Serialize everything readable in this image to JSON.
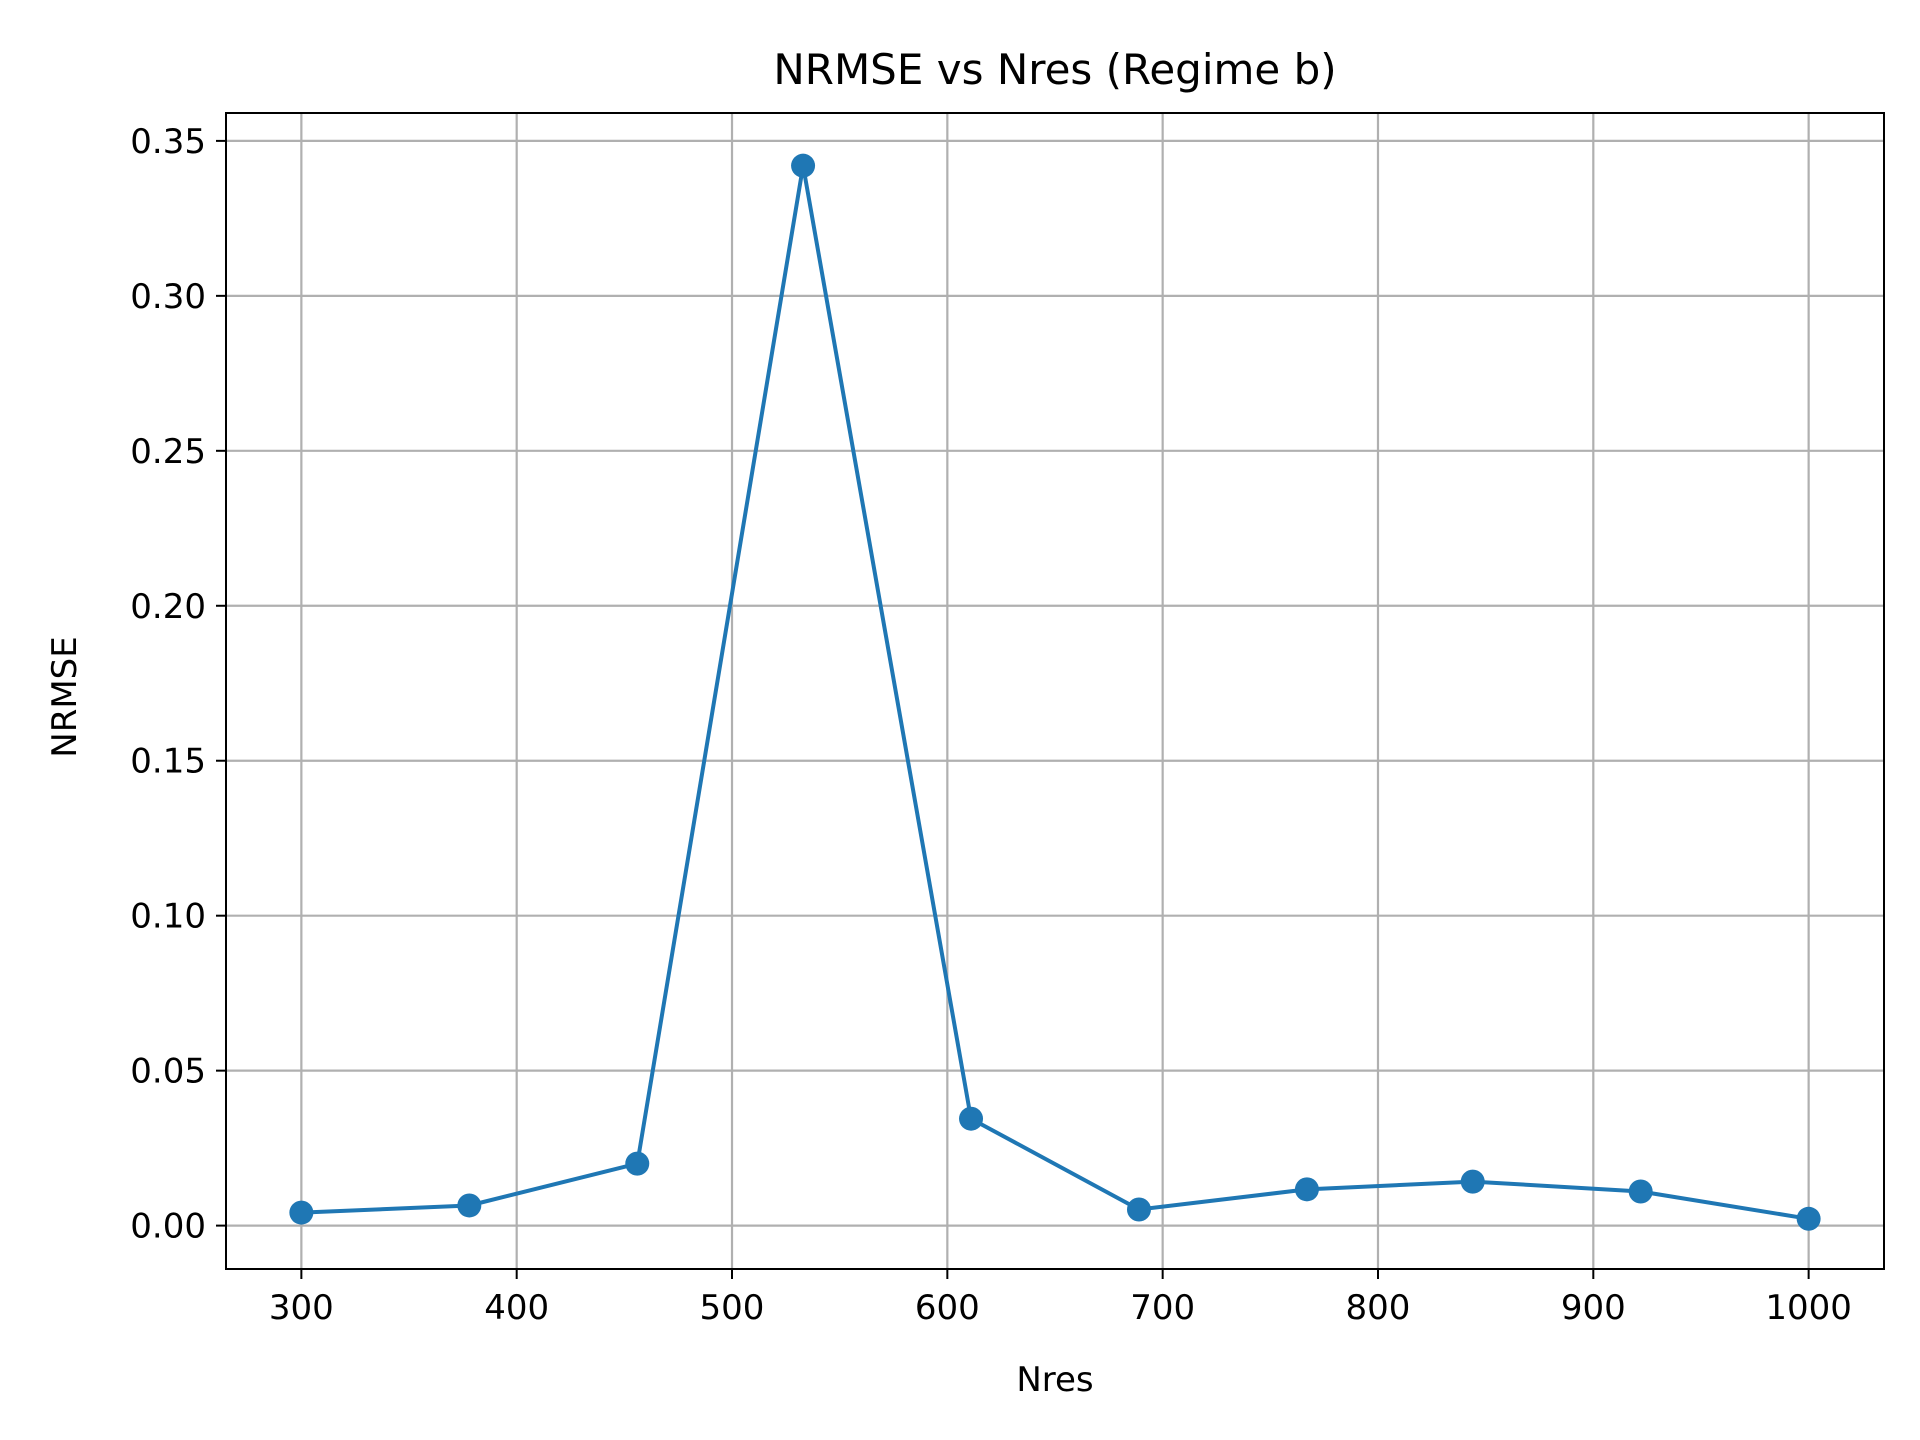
{
  "chart_data": {
    "type": "line",
    "title": "NRMSE vs Nres (Regime b)",
    "xlabel": "Nres",
    "ylabel": "NRMSE",
    "xlim": [
      265,
      1035
    ],
    "ylim": [
      -0.014,
      0.359
    ],
    "x_ticks": [
      300,
      400,
      500,
      600,
      700,
      800,
      900,
      1000
    ],
    "x_tick_labels": [
      "300",
      "400",
      "500",
      "600",
      "700",
      "800",
      "900",
      "1000"
    ],
    "y_ticks": [
      0.0,
      0.05,
      0.1,
      0.15,
      0.2,
      0.25,
      0.3,
      0.35
    ],
    "y_tick_labels": [
      "0.00",
      "0.05",
      "0.10",
      "0.15",
      "0.20",
      "0.25",
      "0.30",
      "0.35"
    ],
    "grid": true,
    "series": [
      {
        "color": "#1f77b4",
        "marker": "circle",
        "x": [
          300,
          378,
          456,
          533,
          611,
          689,
          767,
          844,
          922,
          1000
        ],
        "y": [
          0.0042,
          0.0065,
          0.02,
          0.342,
          0.0345,
          0.0052,
          0.0117,
          0.0142,
          0.011,
          0.0022
        ]
      }
    ]
  }
}
